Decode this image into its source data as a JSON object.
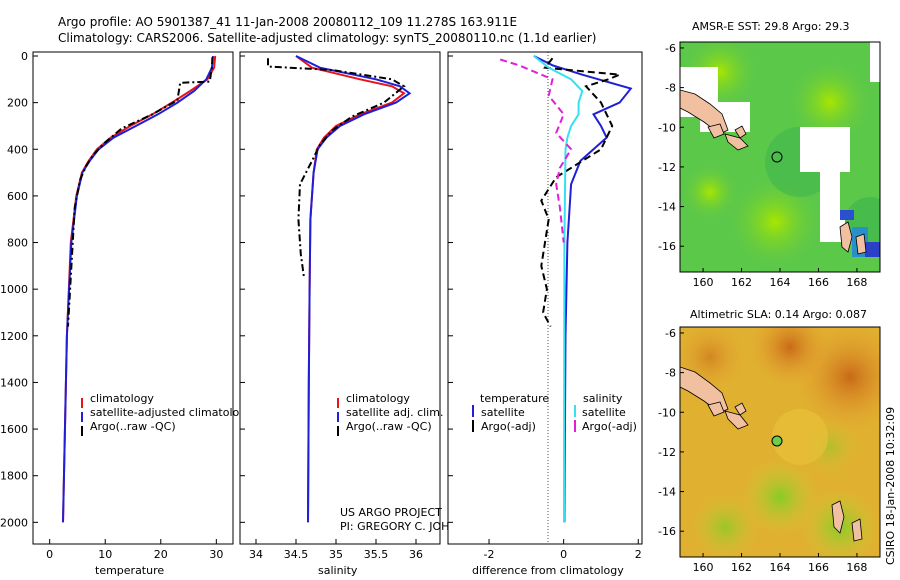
{
  "header": {
    "line1": "Argo profile: AO 5901387_41 11-Jan-2008 20080112_109 11.278S 163.911E",
    "line2": "Climatology: CARS2006. Satellite-adjusted climatology: synTS_20080110.nc (1.1d earlier)"
  },
  "colors": {
    "red": "#e8141c",
    "blue": "#1f1fd8",
    "black": "#000000",
    "cyan": "#35e0f0",
    "magenta": "#e020d8"
  },
  "chart_data": [
    {
      "type": "line",
      "title": "",
      "xlabel": "temperature",
      "ylabel": "",
      "xlim": [
        -3,
        33
      ],
      "ylim": [
        2050,
        0
      ],
      "x_ticks": [
        "0",
        "10",
        "20",
        "30"
      ],
      "x_tick_values": [
        0,
        10,
        20,
        30
      ],
      "y_ticks": [
        "0",
        "200",
        "400",
        "600",
        "800",
        "1000",
        "1200",
        "1400",
        "1600",
        "1800",
        "2000"
      ],
      "y_tick_values": [
        0,
        200,
        400,
        600,
        800,
        1000,
        1200,
        1400,
        1600,
        1800,
        2000
      ],
      "legend": [
        "climatology",
        "satellite-adjusted climatology",
        "Argo(..raw -QC)"
      ],
      "legend_position": "lower-center",
      "series": [
        {
          "name": "climatology",
          "color": "red",
          "style": "solid",
          "x": [
            29.8,
            29.6,
            28.4,
            25.3,
            22,
            18.5,
            14.5,
            11,
            8.5,
            7,
            5.8,
            4.8,
            3.8,
            3.1,
            2.4
          ],
          "y": [
            0,
            50,
            100,
            150,
            200,
            250,
            300,
            350,
            400,
            450,
            500,
            600,
            800,
            1200,
            2000
          ]
        },
        {
          "name": "satellite-adjusted climatology",
          "color": "blue",
          "style": "solid",
          "x": [
            29.4,
            29.2,
            28.2,
            26,
            23,
            19.5,
            15.5,
            11.5,
            8.8,
            7.2,
            5.9,
            4.9,
            3.9,
            3.1,
            2.4
          ],
          "y": [
            0,
            50,
            100,
            150,
            200,
            250,
            300,
            350,
            400,
            450,
            500,
            600,
            800,
            1200,
            2000
          ]
        },
        {
          "name": "Argo(..raw -QC)",
          "color": "black",
          "style": "dashdot",
          "x": [
            29.3,
            29.2,
            28.8,
            23.5,
            23,
            18.5,
            13,
            10,
            8,
            6.6,
            5.5,
            4.5,
            3.3
          ],
          "y": [
            5,
            50,
            110,
            115,
            190,
            250,
            310,
            370,
            420,
            470,
            530,
            650,
            1160
          ]
        }
      ]
    },
    {
      "type": "line",
      "xlabel": "salinity",
      "xlim": [
        33.8,
        36.3
      ],
      "ylim": [
        2050,
        0
      ],
      "x_ticks": [
        "34",
        "34.5",
        "35",
        "35.5",
        "36"
      ],
      "x_tick_values": [
        34,
        34.5,
        35,
        35.5,
        36
      ],
      "legend": [
        "climatology",
        "satellite adj. clim.",
        "Argo(..raw -QC)"
      ],
      "legend_position": "lower-center",
      "annotations": [
        "US ARGO PROJECT",
        "PI: GREGORY C. JOHNSON"
      ],
      "series": [
        {
          "name": "climatology",
          "color": "red",
          "style": "solid",
          "x": [
            34.5,
            34.7,
            35.3,
            35.7,
            35.85,
            35.7,
            35.3,
            35,
            34.85,
            34.76,
            34.72,
            34.68,
            34.67,
            34.66,
            34.65
          ],
          "y": [
            0,
            50,
            100,
            130,
            160,
            200,
            250,
            300,
            350,
            400,
            500,
            700,
            1000,
            1400,
            2000
          ]
        },
        {
          "name": "satellite adj. clim.",
          "color": "blue",
          "style": "solid",
          "x": [
            34.5,
            34.8,
            35.5,
            35.8,
            35.92,
            35.75,
            35.35,
            35.05,
            34.88,
            34.77,
            34.72,
            34.68,
            34.67,
            34.66,
            34.65
          ],
          "y": [
            0,
            50,
            100,
            130,
            160,
            200,
            250,
            300,
            350,
            400,
            500,
            700,
            1000,
            1400,
            2000
          ]
        },
        {
          "name": "Argo(..raw -QC)",
          "color": "black",
          "style": "dashdot",
          "x": [
            34.15,
            34.15,
            34.95,
            35.7,
            35.85,
            35.6,
            35.2,
            34.95,
            34.8,
            34.7,
            34.55,
            34.53,
            34.56,
            34.6
          ],
          "y": [
            10,
            45,
            60,
            100,
            130,
            200,
            260,
            320,
            380,
            450,
            550,
            700,
            850,
            950
          ]
        }
      ]
    },
    {
      "type": "line",
      "xlabel": "difference from climatology",
      "xlim": [
        -3.1,
        2.1
      ],
      "ylim": [
        2050,
        0
      ],
      "x_ticks": [
        "-2",
        "0",
        "2"
      ],
      "x_tick_values": [
        -2,
        0,
        2
      ],
      "legend": [
        "temperature",
        "satellite",
        "Argo(-adj)",
        "salinity",
        "satellite",
        "Argo(-adj)"
      ],
      "legend_position": "lower-center",
      "series": [
        {
          "name": "temperature satellite",
          "color": "blue",
          "style": "solid",
          "x": [
            -0.8,
            -0.3,
            0.5,
            1.8,
            1.5,
            0.8,
            1,
            1.15,
            0.8,
            0.45,
            0.2,
            0.1,
            0.05,
            0.02
          ],
          "y": [
            0,
            40,
            80,
            140,
            200,
            250,
            300,
            350,
            400,
            450,
            550,
            800,
            1200,
            2000
          ]
        },
        {
          "name": "temperature Argo(-adj)",
          "color": "black",
          "style": "dashed",
          "x": [
            -0.3,
            -0.5,
            1.5,
            1.2,
            0.6,
            1,
            1.3,
            1,
            -0.2,
            -0.6,
            -0.4,
            -0.5,
            -0.6,
            -0.45,
            -0.55,
            -0.35
          ],
          "y": [
            10,
            50,
            80,
            100,
            130,
            200,
            300,
            400,
            520,
            620,
            700,
            800,
            900,
            1000,
            1100,
            1160
          ]
        },
        {
          "name": "salinity satellite",
          "color": "cyan",
          "style": "solid",
          "x": [
            -0.8,
            -0.4,
            0.2,
            0.5,
            0.4,
            0.4,
            0.2,
            0.1,
            0.05,
            0.02,
            0.01
          ],
          "y": [
            0,
            50,
            100,
            150,
            200,
            250,
            300,
            350,
            400,
            800,
            2000
          ]
        },
        {
          "name": "salinity Argo(-adj)",
          "color": "magenta",
          "style": "dashed",
          "x": [
            -1.7,
            -1.2,
            -0.3,
            -0.4,
            0,
            -0.2,
            0.2,
            -0.1,
            -0.2,
            -0.1,
            0
          ],
          "y": [
            15,
            40,
            100,
            170,
            250,
            330,
            400,
            480,
            550,
            650,
            800
          ]
        }
      ]
    },
    {
      "type": "heatmap",
      "title": "AMSR-E SST: 29.8  Argo: 29.3",
      "x_ticks": [
        "160",
        "162",
        "164",
        "166",
        "168"
      ],
      "y_ticks": [
        "-6",
        "-8",
        "-10",
        "-12",
        "-14",
        "-16"
      ],
      "xlim": [
        158.8,
        169.2
      ],
      "ylim": [
        -17.3,
        -5.7
      ]
    },
    {
      "type": "heatmap",
      "title": "Altimetric SLA: 0.14  Argo: 0.087",
      "x_ticks": [
        "160",
        "162",
        "164",
        "166",
        "168"
      ],
      "y_ticks": [
        "-6",
        "-8",
        "-10",
        "-12",
        "-14",
        "-16"
      ],
      "xlim": [
        158.8,
        169.2
      ],
      "ylim": [
        -17.3,
        -5.7
      ]
    }
  ],
  "footer": {
    "credit": "CSIRO  18-Jan-2008 10:32:09"
  }
}
